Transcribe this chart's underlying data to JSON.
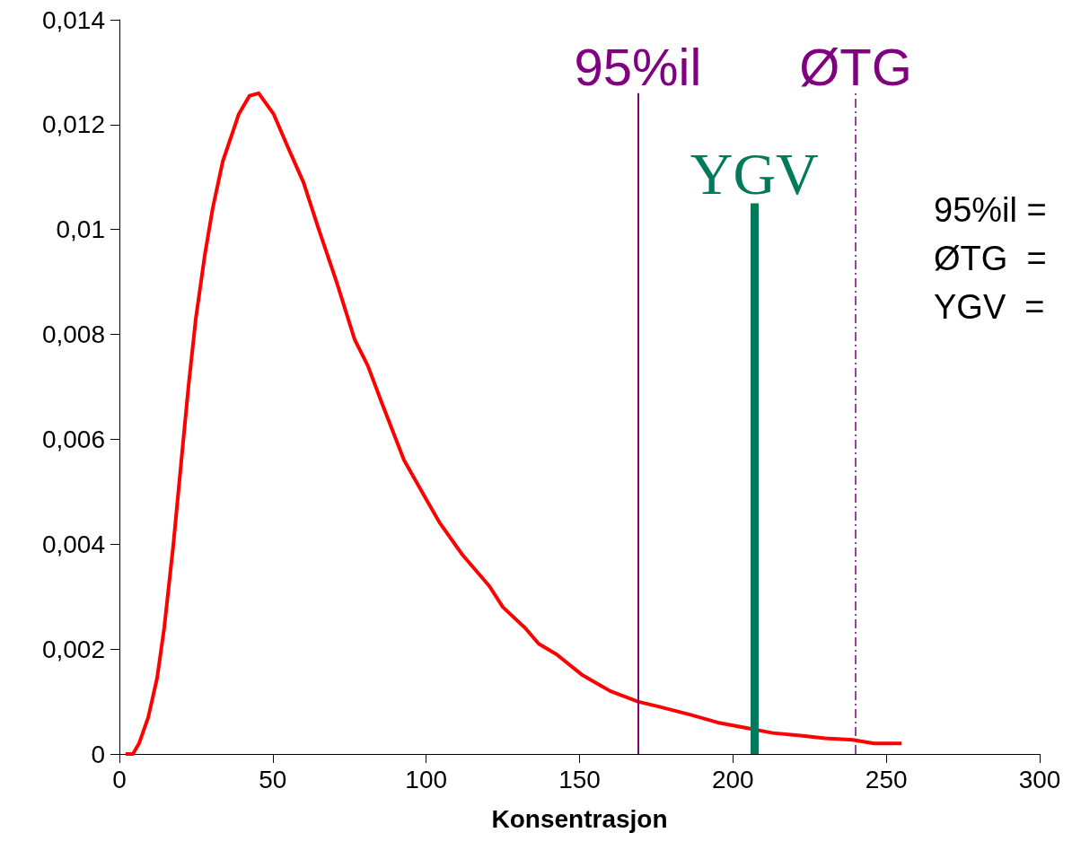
{
  "chart_data": {
    "type": "line",
    "xlabel": "Konsentrasjon",
    "x": [
      2,
      4.4,
      6.4,
      9.4,
      12.3,
      14.6,
      17.6,
      20.2,
      22.5,
      24.9,
      27.8,
      30.4,
      33.7,
      36.6,
      38.9,
      42.4,
      45.4,
      50.3,
      54.7,
      60,
      65,
      70.8,
      76.7,
      81,
      85.5,
      92.8,
      98.6,
      104.5,
      111.8,
      120.6,
      125,
      132.3,
      136.7,
      142.5,
      151,
      160,
      169,
      176,
      186,
      195,
      204,
      213,
      222,
      230,
      239,
      246,
      255
    ],
    "series": [
      {
        "color": "#ff0000",
        "values": [
          0,
          0,
          0.0002,
          0.0007,
          0.00145,
          0.0024,
          0.004,
          0.0056,
          0.007,
          0.0083,
          0.0095,
          0.0104,
          0.0113,
          0.0118,
          0.0122,
          0.01255,
          0.0126,
          0.0122,
          0.0116,
          0.0109,
          0.01,
          0.009,
          0.0079,
          0.0074,
          0.0067,
          0.0056,
          0.005,
          0.0044,
          0.0038,
          0.0032,
          0.0028,
          0.0024,
          0.0021,
          0.0019,
          0.0015,
          0.0012,
          0.001,
          0.0009,
          0.00075,
          0.0006,
          0.0005,
          0.0004,
          0.00035,
          0.0003,
          0.00027,
          0.0002,
          0.0002
        ]
      }
    ],
    "xlim": [
      0,
      300
    ],
    "xticks": [
      0,
      50,
      100,
      150,
      200,
      250,
      300
    ],
    "ylim": [
      0,
      0.014
    ],
    "yticks": [
      0,
      {
        "value": 0.002,
        "label": "0,002"
      },
      {
        "value": 0.004,
        "label": "0,004"
      },
      {
        "value": 0.006,
        "label": "0,006"
      },
      {
        "value": 0.008,
        "label": "0,008"
      },
      {
        "value": 0.01,
        "label": "0,01"
      },
      {
        "value": 0.012,
        "label": "0,012"
      },
      {
        "value": 0.014,
        "label": "0,014"
      }
    ],
    "ref_lines": [
      {
        "axis": "x",
        "value": 169,
        "label": "95%il",
        "color": "#800080",
        "line_style": "solid"
      },
      {
        "axis": "x",
        "value": 207,
        "label": "YGV",
        "color": "#007a5a",
        "line_style": "solid"
      },
      {
        "axis": "x",
        "value": 240,
        "label": "ØTG",
        "color": "#800080",
        "line_style": "dashed"
      }
    ],
    "annotations": [
      "95%il =",
      "ØTG  =",
      "YGV  ="
    ],
    "grid": false,
    "marker": "none",
    "line_style": "solid"
  }
}
